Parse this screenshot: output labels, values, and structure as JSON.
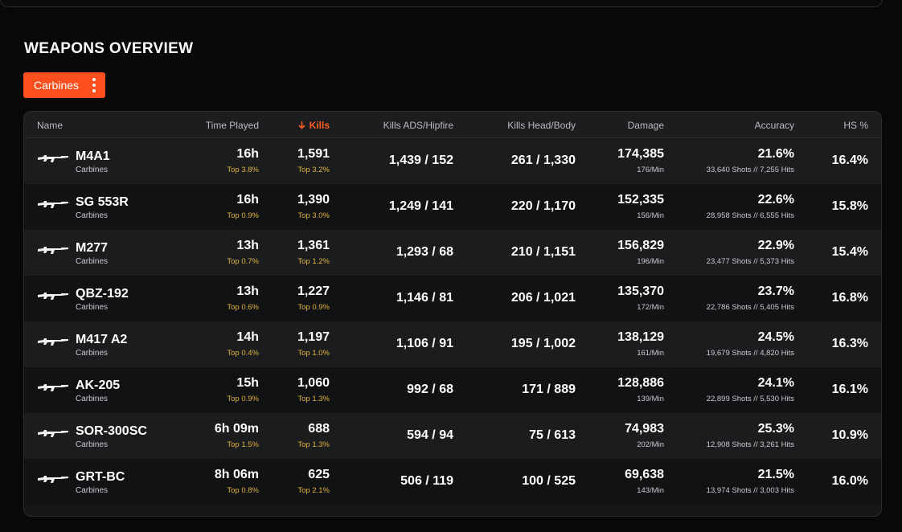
{
  "section": {
    "title": "WEAPONS OVERVIEW"
  },
  "filter": {
    "label": "Carbines",
    "menu_icon": "kebab-icon"
  },
  "accent_color": "#ff4f1e",
  "columns": {
    "name": "Name",
    "time_played": "Time Played",
    "kills": "Kills",
    "kills_ads_hipfire": "Kills ADS/Hipfire",
    "kills_head_body": "Kills Head/Body",
    "damage": "Damage",
    "accuracy": "Accuracy",
    "hs": "HS %",
    "sort_icon": "arrow-down-icon"
  },
  "weapons": [
    {
      "name": "M4A1",
      "category": "Carbines",
      "time": "16h",
      "time_rank": "Top 3.8%",
      "kills": "1,591",
      "kills_rank": "Top 3.2%",
      "ads": "1,439",
      "hipfire": "152",
      "head": "261",
      "body": "1,330",
      "damage": "174,385",
      "damage_rate": "176/Min",
      "accuracy": "21.6%",
      "shots_hits": "33,640 Shots // 7,255 Hits",
      "hs": "16.4%"
    },
    {
      "name": "SG 553R",
      "category": "Carbines",
      "time": "16h",
      "time_rank": "Top 0.9%",
      "kills": "1,390",
      "kills_rank": "Top 3.0%",
      "ads": "1,249",
      "hipfire": "141",
      "head": "220",
      "body": "1,170",
      "damage": "152,335",
      "damage_rate": "156/Min",
      "accuracy": "22.6%",
      "shots_hits": "28,958 Shots // 6,555 Hits",
      "hs": "15.8%"
    },
    {
      "name": "M277",
      "category": "Carbines",
      "time": "13h",
      "time_rank": "Top 0.7%",
      "kills": "1,361",
      "kills_rank": "Top 1.2%",
      "ads": "1,293",
      "hipfire": "68",
      "head": "210",
      "body": "1,151",
      "damage": "156,829",
      "damage_rate": "196/Min",
      "accuracy": "22.9%",
      "shots_hits": "23,477 Shots // 5,373 Hits",
      "hs": "15.4%"
    },
    {
      "name": "QBZ-192",
      "category": "Carbines",
      "time": "13h",
      "time_rank": "Top 0.6%",
      "kills": "1,227",
      "kills_rank": "Top 0.9%",
      "ads": "1,146",
      "hipfire": "81",
      "head": "206",
      "body": "1,021",
      "damage": "135,370",
      "damage_rate": "172/Min",
      "accuracy": "23.7%",
      "shots_hits": "22,786 Shots // 5,405 Hits",
      "hs": "16.8%"
    },
    {
      "name": "M417 A2",
      "category": "Carbines",
      "time": "14h",
      "time_rank": "Top 0.4%",
      "kills": "1,197",
      "kills_rank": "Top 1.0%",
      "ads": "1,106",
      "hipfire": "91",
      "head": "195",
      "body": "1,002",
      "damage": "138,129",
      "damage_rate": "161/Min",
      "accuracy": "24.5%",
      "shots_hits": "19,679 Shots // 4,820 Hits",
      "hs": "16.3%"
    },
    {
      "name": "AK-205",
      "category": "Carbines",
      "time": "15h",
      "time_rank": "Top 0.9%",
      "kills": "1,060",
      "kills_rank": "Top 1.3%",
      "ads": "992",
      "hipfire": "68",
      "head": "171",
      "body": "889",
      "damage": "128,886",
      "damage_rate": "139/Min",
      "accuracy": "24.1%",
      "shots_hits": "22,899 Shots // 5,530 Hits",
      "hs": "16.1%"
    },
    {
      "name": "SOR-300SC",
      "category": "Carbines",
      "time": "6h 09m",
      "time_rank": "Top 1.5%",
      "kills": "688",
      "kills_rank": "Top 1.3%",
      "ads": "594",
      "hipfire": "94",
      "head": "75",
      "body": "613",
      "damage": "74,983",
      "damage_rate": "202/Min",
      "accuracy": "25.3%",
      "shots_hits": "12,908 Shots // 3,261 Hits",
      "hs": "10.9%"
    },
    {
      "name": "GRT-BC",
      "category": "Carbines",
      "time": "8h 06m",
      "time_rank": "Top 0.8%",
      "kills": "625",
      "kills_rank": "Top 2.1%",
      "ads": "506",
      "hipfire": "119",
      "head": "100",
      "body": "525",
      "damage": "69,638",
      "damage_rate": "143/Min",
      "accuracy": "21.5%",
      "shots_hits": "13,974 Shots // 3,003 Hits",
      "hs": "16.0%"
    }
  ]
}
